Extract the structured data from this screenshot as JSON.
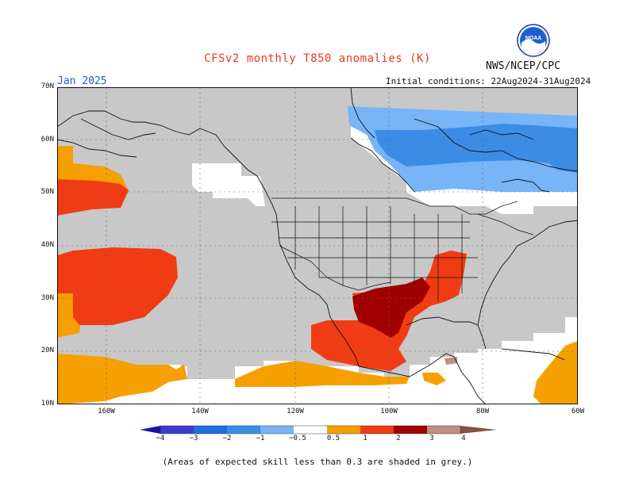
{
  "header": {
    "title": "CFSv2 monthly T850 anomalies (K)",
    "org": "NWS/NCEP/CPC",
    "month": "Jan 2025",
    "initial_conditions": "Initial conditions: 22Aug2024-31Aug2024"
  },
  "logo": {
    "text": "NOAA",
    "icon": "noaa-logo"
  },
  "map": {
    "lat_labels": [
      "70N",
      "60N",
      "50N",
      "40N",
      "30N",
      "20N",
      "10N"
    ],
    "lon_labels": [
      "160W",
      "140W",
      "120W",
      "100W",
      "80W",
      "60W"
    ],
    "grid": true,
    "colors": {
      "low_skill_grey": "#c8c8c8",
      "orange": "#f5a000",
      "red_orange": "#f03c14",
      "dark_red": "#a00000",
      "light_blue": "#78b4f8",
      "blue": "#3c8ce6"
    }
  },
  "colorbar": {
    "labels": [
      "−4",
      "−3",
      "−2",
      "−1",
      "−0.5",
      "0.5",
      "1",
      "2",
      "3",
      "4"
    ],
    "colors": [
      "#1e10a0",
      "#3c3ccc",
      "#1e6ede",
      "#3c8ce6",
      "#78b4f8",
      "#ffffff",
      "#f5a000",
      "#f03c14",
      "#a00000",
      "#c09080",
      "#8a5040"
    ]
  },
  "footnote": "(Areas of expected skill less than 0.3 are shaded in grey.)"
}
